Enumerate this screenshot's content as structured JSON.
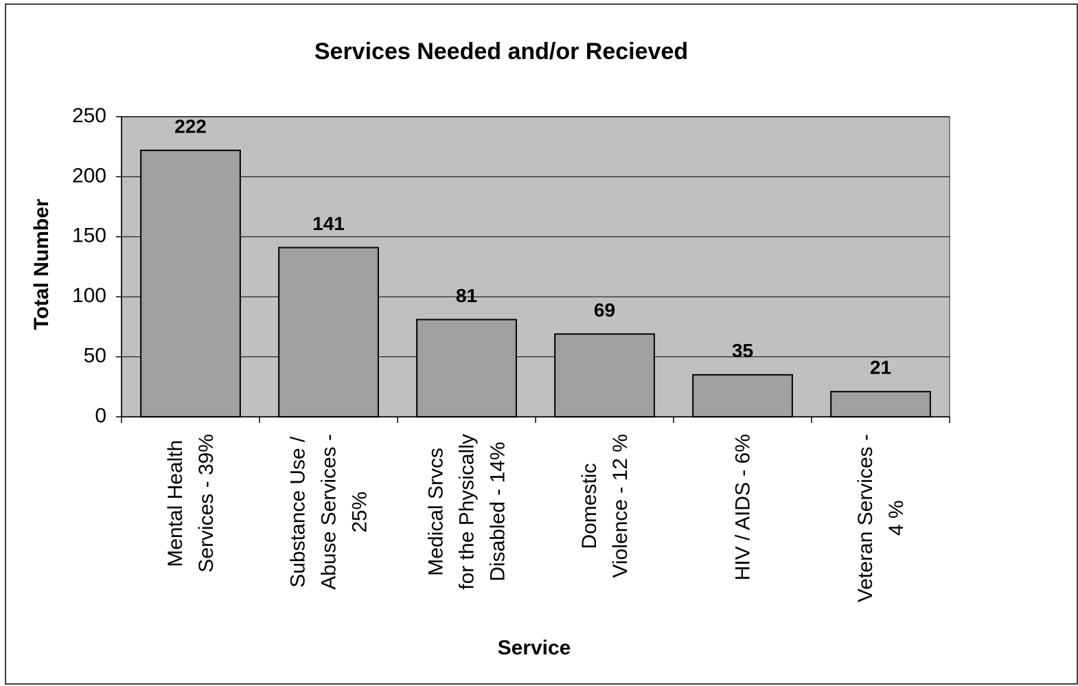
{
  "chart_data": {
    "type": "bar",
    "title": "Services Needed and/or Recieved",
    "x_label": "Service",
    "y_label": "Total Number",
    "categories": [
      "Mental Health\nServices - 39%",
      "Substance Use /\nAbuse Services -\n25%",
      "Medical Srvcs\nfor the Physically\nDisabled - 14%",
      "Domestic\nViolence - 12 %",
      "HIV / AIDS - 6%",
      "Veteran Services -\n4 %"
    ],
    "values": [
      222,
      141,
      81,
      69,
      35,
      21
    ],
    "color": "#a0a0a0",
    "ylim": [
      0,
      250
    ],
    "yticks": [
      0,
      50,
      100,
      150,
      200,
      250
    ],
    "grid": true
  }
}
